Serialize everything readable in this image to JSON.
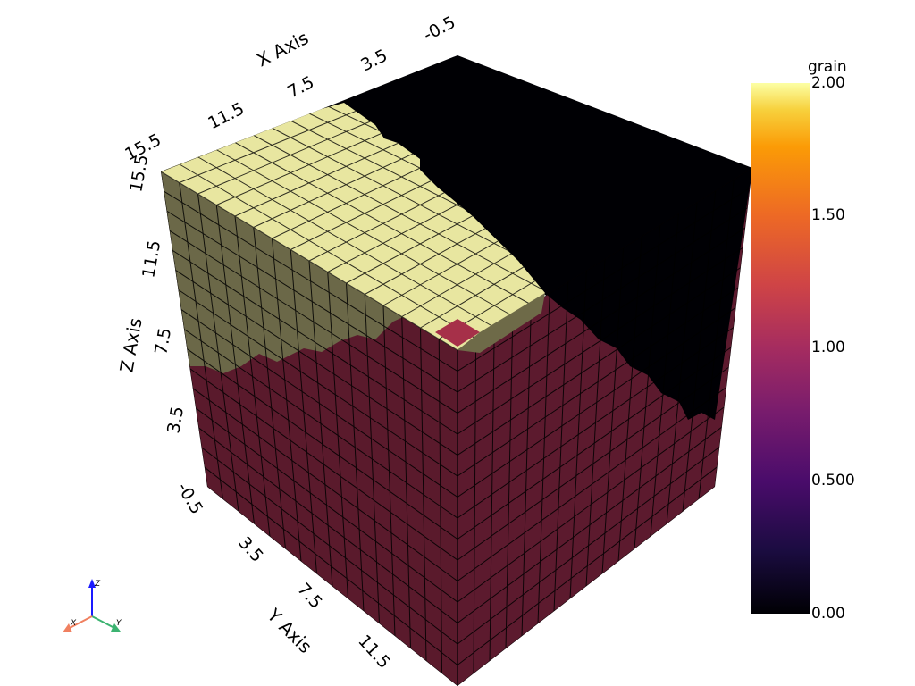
{
  "axes": {
    "x": {
      "title": "X Axis",
      "ticks": [
        "-0.5",
        "3.5",
        "7.5",
        "11.5",
        "15.5"
      ]
    },
    "y": {
      "title": "Y Axis",
      "ticks": [
        "-0.5",
        "3.5",
        "7.5",
        "11.5"
      ]
    },
    "z": {
      "title": "Z Axis",
      "ticks": [
        "3.5",
        "7.5",
        "11.5",
        "15.5"
      ]
    }
  },
  "scalar_bar": {
    "title": "grain",
    "labels": [
      "2.00",
      "1.50",
      "1.00",
      "0.500",
      "0.00"
    ],
    "colormap": "inferno",
    "range": [
      0,
      2
    ]
  },
  "orientation_widget": {
    "x_label": "X",
    "y_label": "Y",
    "z_label": "Z"
  },
  "colors": {
    "grain0": "#000004",
    "grain1": "#7b1e3a",
    "grain2": "#e8e6a0",
    "grain2_side": "#6e6a48",
    "grain1_side": "#5a1a2c",
    "highlight_cell": "#a63049"
  }
}
